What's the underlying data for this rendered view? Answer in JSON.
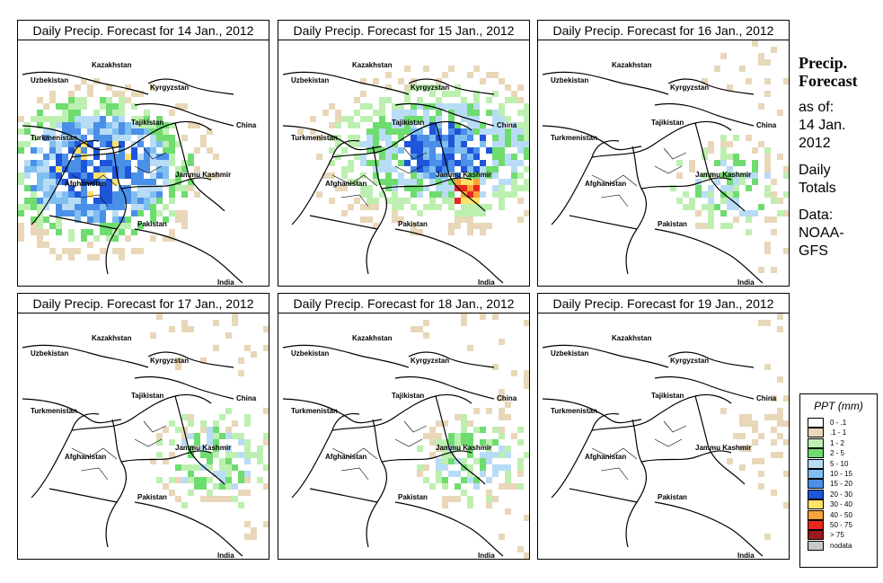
{
  "panels": [
    {
      "title": "Daily Precip. Forecast for  14 Jan., 2012",
      "intensity": "heavy-west"
    },
    {
      "title": "Daily Precip. Forecast for  15 Jan., 2012",
      "intensity": "heavy-kashmir"
    },
    {
      "title": "Daily Precip. Forecast for  16 Jan., 2012",
      "intensity": "light"
    },
    {
      "title": "Daily Precip. Forecast for  17 Jan., 2012",
      "intensity": "light"
    },
    {
      "title": "Daily Precip. Forecast for  18 Jan., 2012",
      "intensity": "light"
    },
    {
      "title": "Daily Precip. Forecast for  19 Jan., 2012",
      "intensity": "minimal"
    }
  ],
  "map_labels": {
    "kazakhstan": "Kazakhstan",
    "uzbekistan": "Uzbekistan",
    "kyrgyzstan": "Kyrgyzstan",
    "tajikistan": "Tajikistan",
    "china": "China",
    "turkmenistan": "Turkmenistan",
    "afghanistan": "Afghanistan",
    "jammu_kashmir": "Jammu Kashmir",
    "pakistan": "Pakistan",
    "india": "India"
  },
  "side": {
    "heading_line1": "Precip.",
    "heading_line2": "Forecast",
    "asof_line1": "as of:",
    "asof_line2": "14 Jan.",
    "asof_line3": "2012",
    "totals_line1": "Daily",
    "totals_line2": "Totals",
    "data_line1": "Data:",
    "data_line2": "NOAA-",
    "data_line3": "GFS"
  },
  "legend": {
    "title": "PPT (mm)",
    "items": [
      {
        "label": "0 - .1",
        "color": "#ffffff"
      },
      {
        "label": ".1 - 1",
        "color": "#e8d7b8"
      },
      {
        "label": "1 - 2",
        "color": "#bdf0b0"
      },
      {
        "label": "2 - 5",
        "color": "#6fdc6f"
      },
      {
        "label": "5 - 10",
        "color": "#b8dcf5"
      },
      {
        "label": "10 - 15",
        "color": "#7fbff0"
      },
      {
        "label": "15 - 20",
        "color": "#4a90e8"
      },
      {
        "label": "20 - 30",
        "color": "#1f55d8"
      },
      {
        "label": "30 - 40",
        "color": "#fde26a"
      },
      {
        "label": "40 - 50",
        "color": "#f9a23a"
      },
      {
        "label": "50 - 75",
        "color": "#e8281c"
      },
      {
        "label": "> 75",
        "color": "#9b1a1a"
      },
      {
        "label": "nodata",
        "color": "#c8c8c8"
      }
    ]
  }
}
